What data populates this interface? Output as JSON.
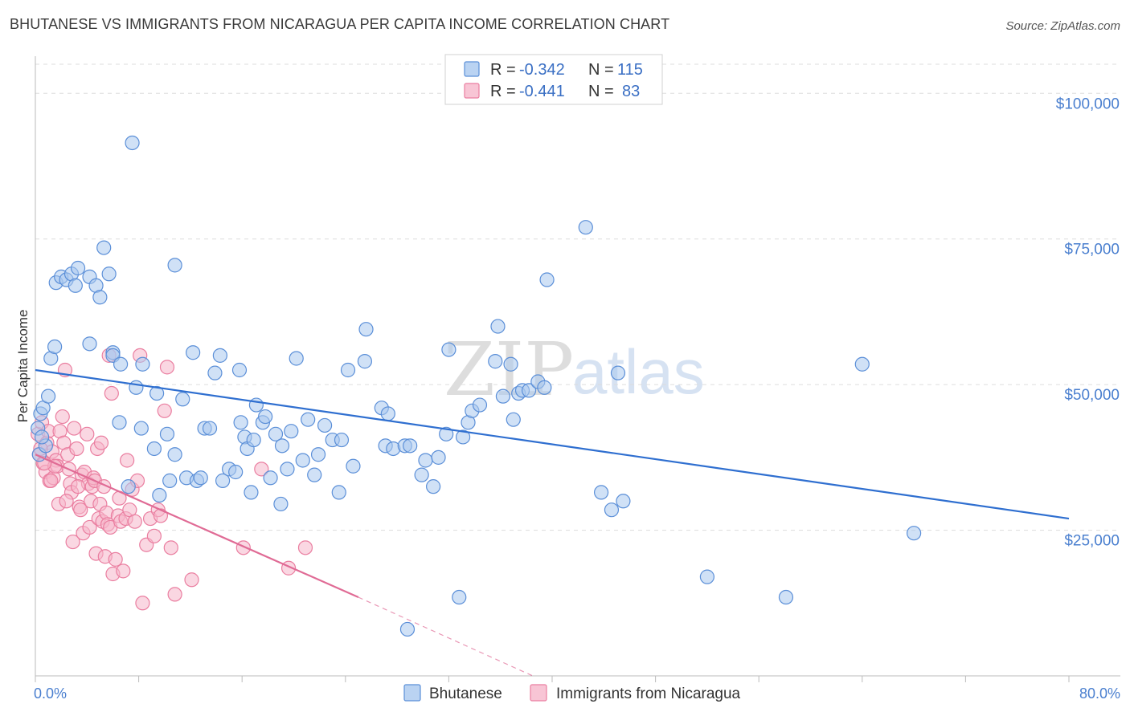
{
  "title": "BHUTANESE VS IMMIGRANTS FROM NICARAGUA PER CAPITA INCOME CORRELATION CHART",
  "source": "Source: ZipAtlas.com",
  "watermark": {
    "zip": "ZIP",
    "atlas": "atlas"
  },
  "colors": {
    "blue_fill": "#a9c8ef",
    "blue_stroke": "#5b8fd8",
    "blue_line": "#2f6fd0",
    "pink_fill": "#f6b6ca",
    "pink_stroke": "#ea7ea0",
    "pink_line": "#e06b95",
    "grid": "#dddddd",
    "axis_label": "#4a7fcf"
  },
  "legend": {
    "rows": [
      {
        "r_label": "R =",
        "r_value": "-0.342",
        "n_label": "N =",
        "n_value": "115"
      },
      {
        "r_label": "R =",
        "r_value": "-0.441",
        "n_label": "N =",
        "n_value": "83"
      }
    ]
  },
  "chart_data": {
    "type": "scatter",
    "title": "BHUTANESE VS IMMIGRANTS FROM NICARAGUA PER CAPITA INCOME CORRELATION CHART",
    "xlabel": "",
    "ylabel": "Per Capita Income",
    "xlim": [
      0,
      80
    ],
    "ylim": [
      0,
      105000
    ],
    "x_tick_labels": [
      "0.0%",
      "80.0%"
    ],
    "y_ticks": [
      25000,
      50000,
      75000,
      100000
    ],
    "y_tick_labels": [
      "$25,000",
      "$50,000",
      "$75,000",
      "$100,000"
    ],
    "x_minor_ticks": [
      0,
      8,
      16,
      24,
      32,
      40,
      48,
      56,
      64,
      72,
      80
    ],
    "series": [
      {
        "name": "Bhutanese",
        "R": -0.342,
        "N": 115,
        "trend": {
          "x0": 0,
          "y0": 52500,
          "x1": 80,
          "y1": 27000,
          "dashed_to": null
        },
        "points": [
          [
            0.3,
            38000
          ],
          [
            0.4,
            45000
          ],
          [
            0.6,
            46000
          ],
          [
            0.8,
            39500
          ],
          [
            1.0,
            48000
          ],
          [
            1.2,
            54500
          ],
          [
            1.5,
            56500
          ],
          [
            1.6,
            67500
          ],
          [
            2.0,
            68500
          ],
          [
            2.4,
            68000
          ],
          [
            2.8,
            69000
          ],
          [
            3.3,
            70000
          ],
          [
            4.2,
            68500
          ],
          [
            4.7,
            67000
          ],
          [
            5.0,
            65000
          ],
          [
            5.3,
            73500
          ],
          [
            5.7,
            69000
          ],
          [
            4.2,
            57000
          ],
          [
            6.0,
            55500
          ],
          [
            6.0,
            55000
          ],
          [
            6.6,
            53500
          ],
          [
            6.5,
            43500
          ],
          [
            7.2,
            32500
          ],
          [
            7.5,
            91500
          ],
          [
            7.8,
            49500
          ],
          [
            8.2,
            42500
          ],
          [
            8.3,
            53500
          ],
          [
            9.4,
            48500
          ],
          [
            9.2,
            39000
          ],
          [
            9.6,
            31000
          ],
          [
            10.2,
            41500
          ],
          [
            10.4,
            33500
          ],
          [
            10.8,
            38000
          ],
          [
            10.8,
            70500
          ],
          [
            11.4,
            47500
          ],
          [
            11.7,
            34000
          ],
          [
            12.2,
            55500
          ],
          [
            12.5,
            33500
          ],
          [
            12.8,
            34000
          ],
          [
            13.1,
            42500
          ],
          [
            13.5,
            42500
          ],
          [
            13.9,
            52000
          ],
          [
            14.3,
            55000
          ],
          [
            14.5,
            33500
          ],
          [
            15.0,
            35500
          ],
          [
            15.5,
            35000
          ],
          [
            15.8,
            52500
          ],
          [
            15.9,
            43500
          ],
          [
            16.2,
            41000
          ],
          [
            16.4,
            39000
          ],
          [
            16.7,
            31500
          ],
          [
            16.9,
            40500
          ],
          [
            17.1,
            46500
          ],
          [
            17.6,
            43500
          ],
          [
            17.8,
            44500
          ],
          [
            18.2,
            34000
          ],
          [
            18.6,
            41500
          ],
          [
            19.0,
            29500
          ],
          [
            19.1,
            39500
          ],
          [
            19.5,
            35500
          ],
          [
            19.8,
            42000
          ],
          [
            20.2,
            54500
          ],
          [
            20.7,
            37000
          ],
          [
            21.1,
            44000
          ],
          [
            21.6,
            34500
          ],
          [
            21.9,
            38000
          ],
          [
            22.4,
            43000
          ],
          [
            23.0,
            40500
          ],
          [
            23.5,
            31500
          ],
          [
            23.7,
            40500
          ],
          [
            24.2,
            52500
          ],
          [
            24.6,
            36000
          ],
          [
            25.5,
            54000
          ],
          [
            25.6,
            59500
          ],
          [
            26.8,
            46000
          ],
          [
            27.1,
            39500
          ],
          [
            27.3,
            45000
          ],
          [
            27.7,
            39000
          ],
          [
            28.6,
            39500
          ],
          [
            29.0,
            39500
          ],
          [
            29.9,
            34500
          ],
          [
            30.2,
            37000
          ],
          [
            30.8,
            32500
          ],
          [
            31.2,
            37500
          ],
          [
            31.8,
            41500
          ],
          [
            32.0,
            56000
          ],
          [
            33.1,
            41000
          ],
          [
            33.5,
            43500
          ],
          [
            33.8,
            45500
          ],
          [
            34.4,
            46500
          ],
          [
            35.6,
            54000
          ],
          [
            35.8,
            60000
          ],
          [
            36.2,
            48000
          ],
          [
            36.8,
            53500
          ],
          [
            37.0,
            44000
          ],
          [
            37.4,
            48500
          ],
          [
            37.7,
            49000
          ],
          [
            38.2,
            49000
          ],
          [
            38.9,
            50500
          ],
          [
            39.4,
            49500
          ],
          [
            32.8,
            13500
          ],
          [
            28.8,
            8000
          ],
          [
            42.6,
            77000
          ],
          [
            43.8,
            31500
          ],
          [
            44.6,
            28500
          ],
          [
            45.1,
            52000
          ],
          [
            45.5,
            30000
          ],
          [
            52.0,
            17000
          ],
          [
            58.1,
            13500
          ],
          [
            64.0,
            53500
          ],
          [
            68.0,
            24500
          ],
          [
            39.6,
            68000
          ],
          [
            0.2,
            42500
          ],
          [
            0.5,
            41000
          ],
          [
            3.1,
            67000
          ]
        ]
      },
      {
        "name": "Immigrants from Nicaragua",
        "R": -0.441,
        "N": 83,
        "trend": {
          "x0": 0,
          "y0": 38000,
          "x1": 25,
          "y1": 13500,
          "dashed_to": [
            38.5,
            0
          ]
        },
        "points": [
          [
            0.2,
            41500
          ],
          [
            0.3,
            38000
          ],
          [
            0.5,
            43500
          ],
          [
            0.6,
            36500
          ],
          [
            0.8,
            35000
          ],
          [
            0.9,
            40000
          ],
          [
            1.0,
            42000
          ],
          [
            1.1,
            33500
          ],
          [
            1.3,
            38500
          ],
          [
            1.4,
            34000
          ],
          [
            1.6,
            37000
          ],
          [
            1.7,
            36000
          ],
          [
            1.8,
            29500
          ],
          [
            1.9,
            42000
          ],
          [
            2.1,
            44500
          ],
          [
            2.2,
            40000
          ],
          [
            2.3,
            52500
          ],
          [
            2.5,
            38000
          ],
          [
            2.6,
            35500
          ],
          [
            2.7,
            33000
          ],
          [
            2.8,
            31500
          ],
          [
            2.9,
            23000
          ],
          [
            3.0,
            42500
          ],
          [
            3.2,
            39000
          ],
          [
            3.4,
            29000
          ],
          [
            3.5,
            28500
          ],
          [
            3.6,
            34500
          ],
          [
            3.7,
            24500
          ],
          [
            3.8,
            35000
          ],
          [
            4.0,
            41500
          ],
          [
            4.1,
            33000
          ],
          [
            4.2,
            25500
          ],
          [
            4.3,
            30000
          ],
          [
            4.4,
            32500
          ],
          [
            4.5,
            34000
          ],
          [
            4.6,
            33500
          ],
          [
            4.7,
            21000
          ],
          [
            4.8,
            39000
          ],
          [
            4.9,
            27000
          ],
          [
            5.0,
            29500
          ],
          [
            5.1,
            40000
          ],
          [
            5.2,
            26500
          ],
          [
            5.3,
            32500
          ],
          [
            5.4,
            20500
          ],
          [
            5.5,
            28000
          ],
          [
            5.6,
            26000
          ],
          [
            5.7,
            55000
          ],
          [
            5.8,
            25500
          ],
          [
            5.9,
            48500
          ],
          [
            6.0,
            17500
          ],
          [
            6.2,
            20000
          ],
          [
            6.4,
            27500
          ],
          [
            6.5,
            30500
          ],
          [
            6.6,
            26500
          ],
          [
            6.8,
            18000
          ],
          [
            7.0,
            27000
          ],
          [
            7.1,
            37000
          ],
          [
            7.3,
            28500
          ],
          [
            7.5,
            32000
          ],
          [
            7.7,
            26500
          ],
          [
            7.9,
            33500
          ],
          [
            8.1,
            55000
          ],
          [
            8.3,
            12500
          ],
          [
            8.6,
            22500
          ],
          [
            8.9,
            27000
          ],
          [
            9.2,
            24000
          ],
          [
            9.5,
            28500
          ],
          [
            9.7,
            27500
          ],
          [
            10.0,
            45500
          ],
          [
            10.2,
            53000
          ],
          [
            10.5,
            22000
          ],
          [
            10.8,
            14000
          ],
          [
            12.1,
            16500
          ],
          [
            16.1,
            22000
          ],
          [
            17.5,
            35500
          ],
          [
            19.6,
            18500
          ],
          [
            20.9,
            22000
          ],
          [
            3.3,
            32500
          ],
          [
            2.4,
            30000
          ],
          [
            1.5,
            36000
          ],
          [
            0.4,
            39000
          ],
          [
            0.7,
            36500
          ],
          [
            1.2,
            33500
          ]
        ]
      }
    ],
    "legend_position": "top-center"
  },
  "bottom_legend": [
    "Bhutanese",
    "Immigrants from Nicaragua"
  ]
}
